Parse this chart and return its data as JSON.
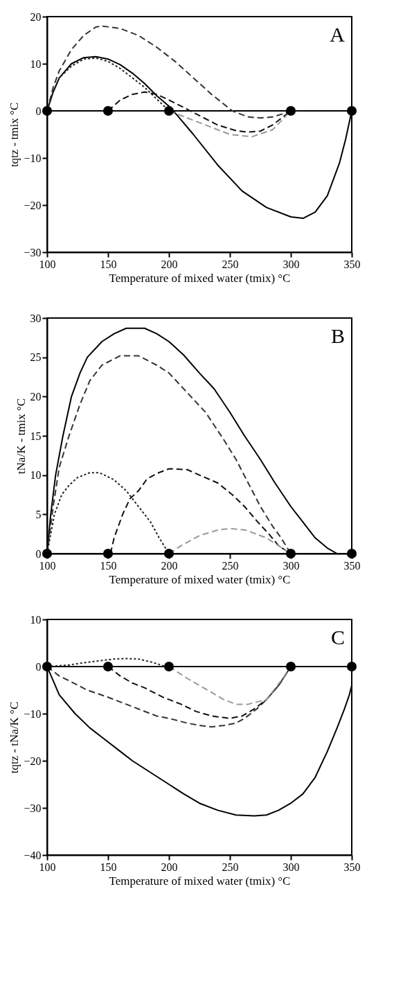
{
  "chart_data": [
    {
      "type": "line",
      "xlabel": "Temperature of mixed water (tmix) °C",
      "ylabel": "tqtz - tmix °C",
      "xlim": [
        100,
        350
      ],
      "xticks": [
        100,
        150,
        200,
        250,
        300,
        350
      ],
      "ylim": [
        -30,
        20
      ],
      "yticks": [
        -30,
        -20,
        -10,
        0,
        10,
        20
      ],
      "grid": false,
      "annotations": [
        "A"
      ],
      "ref_lines": [
        {
          "axis": "y",
          "value": 0,
          "color": "#000000",
          "line_style": "solid"
        }
      ],
      "series": [
        {
          "color": "#000000",
          "line_style": "solid",
          "x": [
            100,
            105,
            110,
            120,
            130,
            140,
            150,
            160,
            170,
            180,
            190,
            200,
            207,
            220,
            240,
            260,
            280,
            300,
            310,
            320,
            330,
            340,
            345,
            350
          ],
          "values": [
            0,
            4,
            7,
            10,
            11.3,
            11.5,
            11,
            9.8,
            8,
            5.8,
            3.2,
            1,
            -1,
            -5,
            -11.5,
            -17,
            -20.5,
            -22.5,
            -22.8,
            -21.5,
            -18,
            -11,
            -6,
            0
          ]
        },
        {
          "color": "#333333",
          "line_style": "dashed",
          "x": [
            100,
            105,
            110,
            120,
            130,
            140,
            145,
            160,
            175,
            190,
            205,
            220,
            235,
            252,
            265,
            275,
            285,
            295,
            300
          ],
          "values": [
            0,
            5,
            8.5,
            13,
            16,
            17.8,
            18,
            17.5,
            16,
            13.5,
            10.5,
            7,
            3.5,
            0,
            -1.3,
            -1.5,
            -1.3,
            -0.5,
            0
          ]
        },
        {
          "color": "#222222",
          "line_style": "dotted",
          "x": [
            100,
            105,
            110,
            120,
            130,
            140,
            150,
            160,
            170,
            180,
            190,
            200
          ],
          "values": [
            0,
            4,
            7,
            9.5,
            11,
            11.2,
            10.5,
            9,
            7,
            5,
            2.5,
            0
          ]
        },
        {
          "color": "#111111",
          "line_style": "dashed",
          "x": [
            150,
            160,
            170,
            180,
            190,
            200,
            210,
            225,
            240,
            255,
            265,
            275,
            285,
            295,
            300
          ],
          "values": [
            0,
            2.3,
            3.5,
            4,
            3.5,
            2.3,
            1,
            -1,
            -3,
            -4.2,
            -4.5,
            -4.3,
            -3,
            -1,
            0
          ]
        },
        {
          "color": "#999999",
          "line_style": "dashed",
          "x": [
            200,
            215,
            230,
            250,
            268,
            285,
            300
          ],
          "values": [
            0,
            -1.5,
            -3,
            -5,
            -5.5,
            -4,
            0
          ]
        },
        {
          "type": "scatter",
          "marker": "circle",
          "color": "#000000",
          "x": [
            100,
            150,
            200,
            300,
            350
          ],
          "values": [
            0,
            0,
            0,
            0,
            0
          ]
        }
      ]
    },
    {
      "type": "line",
      "xlabel": "Temperature of mixed water (tmix) °C",
      "ylabel": "tNa/K - tmix °C",
      "xlim": [
        100,
        350
      ],
      "xticks": [
        100,
        150,
        200,
        250,
        300,
        350
      ],
      "ylim": [
        0,
        30
      ],
      "yticks": [
        0,
        5,
        10,
        15,
        20,
        25,
        30
      ],
      "grid": false,
      "annotations": [
        "B"
      ],
      "series": [
        {
          "color": "#000000",
          "line_style": "solid",
          "x": [
            100,
            103,
            107,
            113,
            120,
            127,
            133,
            145,
            155,
            165,
            180,
            190,
            200,
            212,
            225,
            237,
            250,
            262,
            275,
            287,
            300,
            310,
            320,
            330,
            338
          ],
          "values": [
            0,
            5,
            10,
            15,
            20,
            23,
            25,
            27,
            28,
            28.7,
            28.7,
            28,
            27,
            25.3,
            23,
            21,
            18,
            15,
            12,
            9,
            6,
            4,
            2,
            0.7,
            0
          ]
        },
        {
          "color": "#333333",
          "line_style": "dashed",
          "x": [
            100,
            105,
            110,
            118,
            127,
            135,
            145,
            160,
            175,
            190,
            200,
            215,
            230,
            245,
            255,
            265,
            275,
            285,
            292,
            300
          ],
          "values": [
            0,
            6,
            11,
            15,
            19,
            22,
            24,
            25.2,
            25.2,
            24,
            23,
            20.5,
            18,
            14.5,
            12,
            9,
            6,
            3.5,
            2,
            0
          ]
        },
        {
          "color": "#222222",
          "line_style": "dotted",
          "x": [
            100,
            106,
            112,
            118,
            125,
            135,
            143,
            155,
            165,
            175,
            185,
            192,
            200
          ],
          "values": [
            0,
            5,
            7.5,
            8.7,
            9.7,
            10.3,
            10.3,
            9.4,
            8,
            6,
            4,
            2,
            0
          ]
        },
        {
          "color": "#111111",
          "line_style": "dashed",
          "x": [
            152,
            155,
            162,
            168,
            175,
            182,
            190,
            200,
            215,
            225,
            240,
            252,
            262,
            273,
            282,
            290,
            300
          ],
          "values": [
            0,
            2,
            5,
            7,
            8,
            9.5,
            10.2,
            10.8,
            10.7,
            10,
            9,
            7.5,
            6,
            4,
            2.5,
            1,
            0
          ]
        },
        {
          "color": "#999999",
          "line_style": "dashed",
          "x": [
            200,
            210,
            225,
            240,
            250,
            263,
            280,
            290,
            300
          ],
          "values": [
            0,
            1,
            2.3,
            3,
            3.2,
            3,
            2,
            1,
            0
          ]
        },
        {
          "type": "scatter",
          "marker": "circle",
          "color": "#000000",
          "x": [
            100,
            150,
            200,
            300,
            350
          ],
          "values": [
            0,
            0,
            0,
            0,
            0
          ]
        }
      ]
    },
    {
      "type": "line",
      "xlabel": "Temperature of mixed water (tmix) °C",
      "ylabel": "tqtz - tNa/K °C",
      "xlim": [
        100,
        350
      ],
      "xticks": [
        100,
        150,
        200,
        250,
        300,
        350
      ],
      "ylim": [
        -40,
        10
      ],
      "yticks": [
        -40,
        -30,
        -20,
        -10,
        0,
        10
      ],
      "grid": false,
      "annotations": [
        "C"
      ],
      "ref_lines": [
        {
          "axis": "y",
          "value": 0,
          "color": "#000000",
          "line_style": "solid"
        }
      ],
      "series": [
        {
          "color": "#000000",
          "line_style": "solid",
          "x": [
            100,
            105,
            110,
            123,
            135,
            145,
            160,
            170,
            185,
            200,
            212,
            225,
            240,
            255,
            270,
            280,
            290,
            300,
            310,
            320,
            330,
            338,
            344,
            348,
            350
          ],
          "values": [
            0,
            -3,
            -6,
            -10,
            -13,
            -15,
            -18,
            -20,
            -22.5,
            -25,
            -27,
            -29,
            -30.5,
            -31.5,
            -31.7,
            -31.5,
            -30.5,
            -29,
            -27,
            -23.5,
            -18,
            -13,
            -9,
            -6,
            -4
          ]
        },
        {
          "color": "#333333",
          "line_style": "dashed",
          "x": [
            100,
            110,
            118,
            133,
            150,
            165,
            175,
            190,
            200,
            215,
            225,
            235,
            245,
            255,
            262,
            272,
            280,
            290,
            295,
            300
          ],
          "values": [
            0,
            -2,
            -3,
            -5,
            -6.5,
            -8,
            -9,
            -10.5,
            -11,
            -12,
            -12.5,
            -12.8,
            -12.5,
            -12,
            -11,
            -9,
            -7,
            -4,
            -2,
            0
          ]
        },
        {
          "color": "#222222",
          "line_style": "dotted",
          "x": [
            100,
            117,
            130,
            145,
            155,
            165,
            175,
            185,
            195,
            200
          ],
          "values": [
            0,
            0.3,
            0.8,
            1.3,
            1.6,
            1.7,
            1.6,
            1,
            0.2,
            0
          ]
        },
        {
          "color": "#111111",
          "line_style": "dashed",
          "x": [
            150,
            160,
            170,
            180,
            195,
            210,
            222,
            235,
            250,
            260,
            270,
            280,
            290,
            300
          ],
          "values": [
            0,
            -2,
            -3.5,
            -4.5,
            -6.5,
            -8,
            -9.5,
            -10.5,
            -11,
            -10.5,
            -9,
            -7,
            -4,
            0
          ]
        },
        {
          "color": "#999999",
          "line_style": "dashed",
          "x": [
            200,
            215,
            225,
            235,
            245,
            255,
            265,
            280,
            292,
            300
          ],
          "values": [
            0,
            -2.5,
            -4,
            -5.5,
            -7,
            -8,
            -8,
            -7,
            -3,
            0
          ]
        },
        {
          "type": "scatter",
          "marker": "circle",
          "color": "#000000",
          "x": [
            100,
            150,
            200,
            300,
            350
          ],
          "values": [
            0,
            0,
            0,
            0,
            0
          ]
        }
      ]
    }
  ]
}
